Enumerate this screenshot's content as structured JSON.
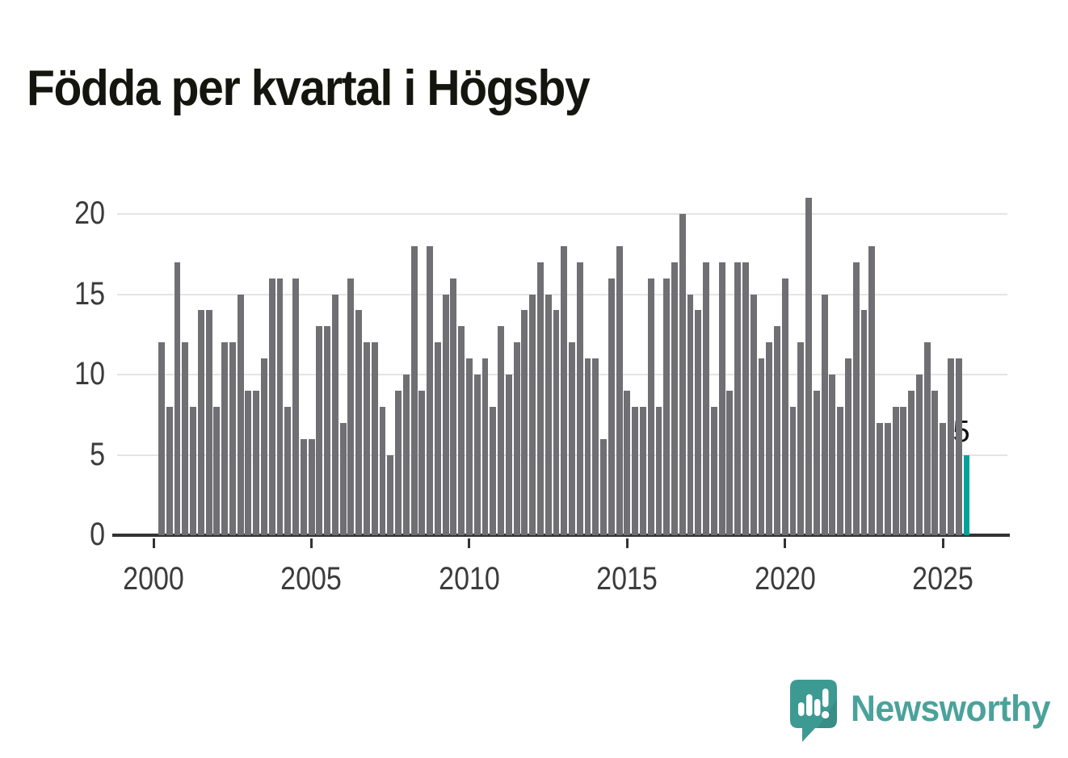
{
  "header": {
    "title": "Födda per kvartal i Högsby"
  },
  "chart_data": {
    "type": "bar",
    "title": "Födda per kvartal i Högsby",
    "xlabel": "",
    "ylabel": "",
    "start_year": 2000,
    "start_quarter": 1,
    "y_ticks": [
      0,
      5,
      10,
      15,
      20
    ],
    "ylim": [
      0,
      22
    ],
    "x_tick_labels": [
      "2000",
      "2005",
      "2010",
      "2015",
      "2020",
      "2025"
    ],
    "grid": "horizontal",
    "legend": "none",
    "series": [
      {
        "name": "Födda per kvartal",
        "values": [
          12,
          8,
          17,
          12,
          8,
          14,
          14,
          8,
          12,
          12,
          15,
          9,
          9,
          11,
          16,
          16,
          8,
          16,
          6,
          6,
          13,
          13,
          15,
          7,
          16,
          14,
          12,
          12,
          8,
          5,
          9,
          10,
          18,
          9,
          18,
          12,
          15,
          16,
          13,
          11,
          10,
          11,
          8,
          13,
          10,
          12,
          14,
          15,
          17,
          15,
          14,
          18,
          12,
          17,
          11,
          11,
          6,
          16,
          18,
          9,
          8,
          8,
          16,
          8,
          16,
          17,
          20,
          15,
          14,
          17,
          8,
          17,
          9,
          17,
          17,
          15,
          11,
          12,
          13,
          16,
          8,
          12,
          21,
          9,
          15,
          10,
          8,
          11,
          17,
          14,
          18,
          7,
          7,
          8,
          8,
          9,
          10,
          12,
          9,
          7,
          11,
          11,
          5
        ]
      }
    ],
    "highlight": {
      "index": 102,
      "quarter": "2025 Q3",
      "value": 5,
      "label": "5"
    }
  },
  "colors": {
    "bar": "#6f6f74",
    "highlight_bar": "#00a29a",
    "grid": "#e4e4e4",
    "axis": "#333333",
    "tick_text": "#3b3b3b",
    "title_text": "#15150f",
    "annotation_bg": "#ffffff",
    "annotation_text": "#111111",
    "logo_bubble": "#3d9a93",
    "logo_wordmark": "#4aa29b"
  },
  "logo": {
    "wordmark": "Newsworthy",
    "icon": "newsworthy-speech-bubble-chart-icon"
  }
}
